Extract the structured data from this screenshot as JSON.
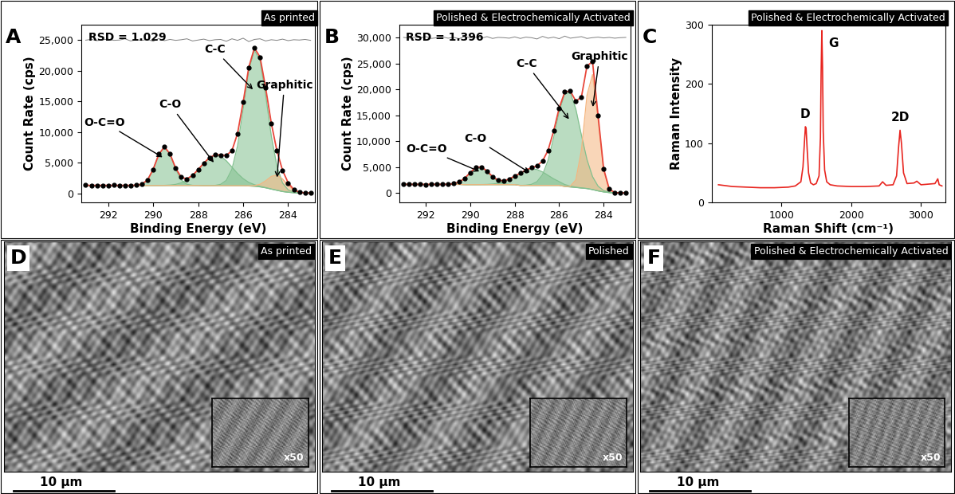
{
  "chart_data": [
    {
      "type": "area",
      "panel": "A",
      "title": "As printed",
      "x_label": "Binding Energy (eV)",
      "y_label": "Count Rate (cps)",
      "annotations": [
        "RSD = 1.029"
      ],
      "x": [
        293.0,
        292.75,
        292.5,
        292.25,
        292.0,
        291.75,
        291.5,
        291.25,
        291.0,
        290.75,
        290.5,
        290.25,
        290.0,
        289.75,
        289.5,
        289.25,
        289.0,
        288.75,
        288.5,
        288.25,
        288.0,
        287.75,
        287.5,
        287.25,
        287.0,
        286.75,
        286.5,
        286.25,
        286.0,
        285.75,
        285.5,
        285.25,
        285.0,
        284.75,
        284.5,
        284.25,
        284.0,
        283.75,
        283.5,
        283.25,
        283.0
      ],
      "xlim": [
        293.2,
        282.8
      ],
      "xticks": [
        292,
        290,
        288,
        286,
        284
      ],
      "ylim": [
        -1500,
        27500
      ],
      "yticks": [
        0,
        {
          "value": 5000,
          "label": "5,000"
        },
        {
          "value": 10000,
          "label": "10,000"
        },
        {
          "value": 15000,
          "label": "15,000"
        },
        {
          "value": 20000,
          "label": "20,000"
        },
        {
          "value": 25000,
          "label": "25,000"
        }
      ],
      "background": [
        1300,
        1300,
        1300,
        1300,
        1300,
        1300,
        1300,
        1300,
        1300,
        1300,
        1300,
        1280,
        1280,
        1280,
        1280,
        1280,
        1280,
        1280,
        1280,
        1280,
        1280,
        1250,
        1250,
        1250,
        1250,
        1250,
        1250,
        1250,
        1250,
        1200,
        1150,
        1050,
        900,
        700,
        500,
        300,
        180,
        100,
        60,
        50,
        40
      ],
      "measured": {
        "color": "#000000",
        "marker": "circle",
        "values": [
          1320,
          1290,
          1310,
          1280,
          1300,
          1330,
          1290,
          1310,
          1300,
          1340,
          1480,
          2200,
          3900,
          6400,
          7580,
          6450,
          4080,
          2630,
          2350,
          2950,
          3860,
          4950,
          5790,
          6300,
          6250,
          6200,
          6980,
          9720,
          14900,
          20500,
          23750,
          22200,
          17230,
          11400,
          6950,
          3730,
          1700,
          630,
          190,
          80,
          50
        ]
      },
      "fit": {
        "color": "#e8473b",
        "line_style": "solid"
      },
      "residual": {
        "color": "#808080",
        "line_style": "solid",
        "values": [
          24980,
          25100,
          24900,
          25050,
          25150,
          24950,
          25000,
          25200,
          24850,
          25050,
          24950,
          25100,
          24800,
          25250,
          24900,
          25100,
          24950,
          25050,
          25200,
          24850,
          25000,
          25150,
          24900,
          25050,
          25100,
          24800,
          25200,
          24950,
          25300,
          24750,
          25100,
          25200,
          24850,
          25050,
          24950,
          25150,
          24900,
          25050,
          25000,
          25100,
          24950
        ]
      },
      "series": [
        {
          "name": "O-C=O",
          "color": "#82c08f",
          "values": [
            0,
            0,
            0,
            0,
            0,
            0,
            0,
            0,
            0,
            28,
            197,
            898,
            2650,
            5072,
            6300,
            5072,
            2650,
            898,
            197,
            28,
            0,
            0,
            0,
            0,
            0,
            0,
            0,
            0,
            0,
            0,
            0,
            0,
            0,
            0,
            0,
            0,
            0,
            0,
            0,
            0,
            0
          ]
        },
        {
          "name": "C-O",
          "color": "#82c08f",
          "values": [
            0,
            0,
            0,
            0,
            0,
            0,
            0,
            0,
            0,
            0,
            0,
            0,
            0,
            0,
            23,
            69,
            183,
            431,
            892,
            1623,
            2602,
            3672,
            4561,
            4987,
            4800,
            4067,
            3033,
            1991,
            1151,
            585,
            262,
            103,
            36,
            0,
            0,
            0,
            0,
            0,
            0,
            0,
            0
          ]
        },
        {
          "name": "C-C",
          "color": "#82c08f",
          "values": [
            0,
            0,
            0,
            0,
            0,
            0,
            0,
            0,
            0,
            0,
            0,
            0,
            0,
            0,
            0,
            0,
            0,
            0,
            0,
            0,
            0,
            0,
            0,
            44,
            220,
            865,
            2676,
            6512,
            12466,
            18754,
            22193,
            20650,
            15110,
            8693,
            3925,
            1398,
            390,
            86,
            15,
            0,
            0
          ]
        },
        {
          "name": "Graphitic",
          "color": "#f5b57f",
          "values": [
            0,
            0,
            0,
            0,
            0,
            0,
            0,
            0,
            0,
            0,
            0,
            0,
            0,
            0,
            0,
            0,
            0,
            0,
            0,
            0,
            0,
            0,
            0,
            0,
            0,
            0,
            0,
            0,
            0,
            19,
            110,
            431,
            1145,
            2057,
            2500,
            2057,
            1145,
            431,
            110,
            19,
            0
          ]
        }
      ]
    },
    {
      "type": "area",
      "panel": "B",
      "title": "Polished & Electrochemically Activated",
      "x_label": "Binding Energy (eV)",
      "y_label": "Count Rate (cps)",
      "annotations": [
        "RSD = 1.396"
      ],
      "x": [
        293.0,
        292.75,
        292.5,
        292.25,
        292.0,
        291.75,
        291.5,
        291.25,
        291.0,
        290.75,
        290.5,
        290.25,
        290.0,
        289.75,
        289.5,
        289.25,
        289.0,
        288.75,
        288.5,
        288.25,
        288.0,
        287.75,
        287.5,
        287.25,
        287.0,
        286.75,
        286.5,
        286.25,
        286.0,
        285.75,
        285.5,
        285.25,
        285.0,
        284.75,
        284.5,
        284.25,
        284.0,
        283.75,
        283.5,
        283.25,
        283.0
      ],
      "xlim": [
        293.2,
        282.8
      ],
      "xticks": [
        292,
        290,
        288,
        286,
        284
      ],
      "ylim": [
        -1800,
        32500
      ],
      "yticks": [
        0,
        {
          "value": 5000,
          "label": "5,000"
        },
        {
          "value": 10000,
          "label": "10,000"
        },
        {
          "value": 15000,
          "label": "15,000"
        },
        {
          "value": 20000,
          "label": "20,000"
        },
        {
          "value": 25000,
          "label": "25,000"
        },
        {
          "value": 30000,
          "label": "30,000"
        }
      ],
      "background": [
        1700,
        1700,
        1700,
        1700,
        1700,
        1700,
        1700,
        1700,
        1700,
        1700,
        1700,
        1650,
        1650,
        1650,
        1650,
        1650,
        1650,
        1650,
        1650,
        1650,
        1650,
        1500,
        1500,
        1500,
        1500,
        1500,
        1500,
        1500,
        1500,
        1300,
        1200,
        1100,
        1000,
        900,
        700,
        450,
        250,
        120,
        60,
        50,
        40
      ],
      "measured": {
        "color": "#000000",
        "marker": "circle",
        "values": [
          1710,
          1690,
          1720,
          1700,
          1680,
          1710,
          1700,
          1690,
          1740,
          1850,
          2150,
          2900,
          3980,
          4990,
          5060,
          4300,
          3180,
          2530,
          2380,
          2750,
          3300,
          3870,
          4440,
          4920,
          5280,
          6200,
          8250,
          12000,
          16400,
          19550,
          19700,
          17800,
          18500,
          24500,
          25400,
          15050,
          4700,
          840,
          130,
          60,
          40
        ]
      },
      "fit": {
        "color": "#e8473b",
        "line_style": "solid"
      },
      "residual": {
        "color": "#808080",
        "line_style": "solid",
        "values": [
          30050,
          29900,
          30100,
          29950,
          30200,
          29850,
          30000,
          30150,
          29900,
          30050,
          29800,
          30250,
          29950,
          30100,
          29900,
          30200,
          29850,
          30050,
          30000,
          29900,
          30150,
          29850,
          30100,
          30000,
          29750,
          30250,
          29900,
          30100,
          29800,
          30300,
          29900,
          30050,
          30200,
          29850,
          30000,
          30100,
          29950,
          30050,
          29900,
          30000,
          30050
        ]
      },
      "series": [
        {
          "name": "O-C=O",
          "color": "#82c08f",
          "values": [
            0,
            0,
            0,
            0,
            0,
            0,
            0,
            0,
            28,
            134,
            474,
            1233,
            2358,
            3311,
            3415,
            2587,
            1439,
            588,
            176,
            39,
            0,
            0,
            0,
            0,
            0,
            0,
            0,
            0,
            0,
            0,
            0,
            0,
            0,
            0,
            0,
            0,
            0,
            0,
            0,
            0,
            0
          ]
        },
        {
          "name": "C-O",
          "color": "#82c08f",
          "values": [
            0,
            0,
            0,
            0,
            0,
            0,
            0,
            0,
            0,
            0,
            0,
            0,
            0,
            0,
            15,
            44,
            117,
            276,
            571,
            1039,
            1665,
            2350,
            2919,
            3192,
            3072,
            2603,
            1941,
            1274,
            737,
            374,
            168,
            66,
            23,
            0,
            0,
            0,
            0,
            0,
            0,
            0,
            0
          ]
        },
        {
          "name": "C-C",
          "color": "#82c08f",
          "values": [
            0,
            0,
            0,
            0,
            0,
            0,
            0,
            0,
            0,
            0,
            0,
            0,
            0,
            0,
            0,
            0,
            0,
            0,
            0,
            0,
            0,
            0,
            47,
            205,
            725,
            2079,
            4847,
            9204,
            14201,
            17825,
            18197,
            15109,
            10205,
            5606,
            2503,
            910,
            269,
            65,
            13,
            0,
            0
          ]
        },
        {
          "name": "Graphitic",
          "color": "#f5b57f",
          "values": [
            0,
            0,
            0,
            0,
            0,
            0,
            0,
            0,
            0,
            0,
            0,
            0,
            0,
            0,
            0,
            0,
            0,
            0,
            0,
            0,
            0,
            0,
            0,
            0,
            0,
            0,
            0,
            0,
            0,
            0,
            149,
            1478,
            7305,
            18016,
            22190,
            13646,
            4189,
            643,
            49,
            0,
            0
          ]
        }
      ]
    },
    {
      "type": "line",
      "panel": "C",
      "title": "Polished & Electrochemically Activated",
      "x_label": "Raman Shift (cm⁻¹)",
      "y_label": "Raman Intensity",
      "color": "#e8251f",
      "x": [
        100,
        300,
        500,
        700,
        900,
        1100,
        1200,
        1280,
        1310,
        1330,
        1345,
        1355,
        1370,
        1390,
        1420,
        1460,
        1500,
        1540,
        1560,
        1570,
        1580,
        1590,
        1600,
        1620,
        1650,
        1700,
        1800,
        2000,
        2200,
        2400,
        2450,
        2500,
        2600,
        2650,
        2680,
        2700,
        2720,
        2750,
        2800,
        2900,
        2940,
        3000,
        3100,
        3200,
        3240,
        3260,
        3300
      ],
      "values": [
        30,
        27,
        26,
        25,
        25,
        26,
        28,
        35,
        60,
        100,
        128,
        125,
        90,
        50,
        33,
        30,
        32,
        45,
        110,
        220,
        290,
        230,
        120,
        55,
        35,
        30,
        28,
        27,
        27,
        28,
        35,
        29,
        30,
        45,
        95,
        122,
        100,
        50,
        32,
        33,
        36,
        30,
        31,
        32,
        40,
        30,
        28
      ],
      "xlim": [
        0,
        3350
      ],
      "xticks": [
        1000,
        2000,
        3000
      ],
      "ylim": [
        0,
        300
      ],
      "yticks": [
        0,
        100,
        200,
        300
      ],
      "peak_labels": [
        {
          "text": "D",
          "x": 1345
        },
        {
          "text": "G",
          "x": 1580
        },
        {
          "text": "2D",
          "x": 2700
        }
      ]
    }
  ],
  "images": [
    {
      "panel": "D",
      "title": "As printed",
      "scale_bar": "10 μm",
      "inset_label": "x50"
    },
    {
      "panel": "E",
      "title": "Polished",
      "scale_bar": "10 μm",
      "inset_label": "x50"
    },
    {
      "panel": "F",
      "title": "Polished & Electrochemically Activated",
      "scale_bar": "10 μm",
      "inset_label": "x50"
    }
  ]
}
